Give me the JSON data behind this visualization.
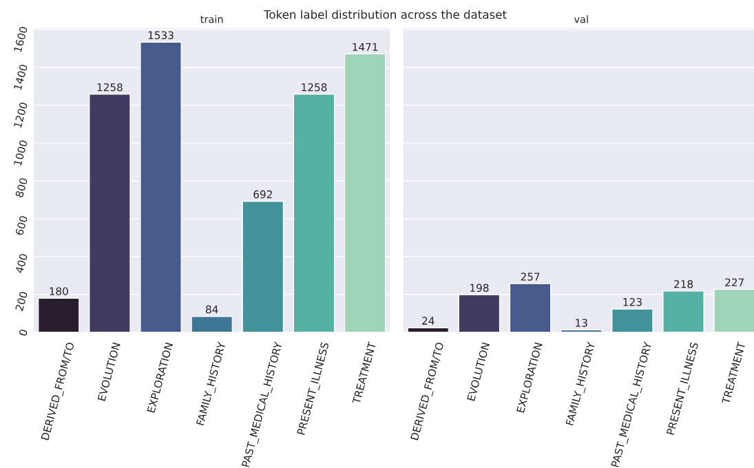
{
  "chart_data": [
    {
      "type": "bar",
      "title": "train",
      "annotations": [
        "Token label distribution across the dataset"
      ],
      "categories": [
        "DERIVED_FROM/TO",
        "EVOLUTION",
        "EXPLORATION",
        "FAMILY_HISTORY",
        "PAST_MEDICAL_HISTORY",
        "PRESENT_ILLNESS",
        "TREATMENT"
      ],
      "values": [
        180,
        1258,
        1533,
        84,
        692,
        1258,
        1471
      ],
      "colors": [
        "#2c1e31",
        "#413a61",
        "#465a8b",
        "#3f7896",
        "#42929b",
        "#55b2a3",
        "#a0d4b7"
      ],
      "ylim": [
        0,
        1610
      ],
      "yticks": [
        0,
        200,
        400,
        600,
        800,
        1000,
        1200,
        1400,
        1600
      ],
      "data_labels": true,
      "grid": "y"
    },
    {
      "type": "bar",
      "title": "val",
      "categories": [
        "DERIVED_FROM/TO",
        "EVOLUTION",
        "EXPLORATION",
        "FAMILY_HISTORY",
        "PAST_MEDICAL_HISTORY",
        "PRESENT_ILLNESS",
        "TREATMENT"
      ],
      "values": [
        24,
        198,
        257,
        13,
        123,
        218,
        227
      ],
      "colors": [
        "#2c1e31",
        "#413a61",
        "#465a8b",
        "#3f7896",
        "#42929b",
        "#55b2a3",
        "#a0d4b7"
      ],
      "ylim": [
        0,
        1610
      ],
      "yticks": [
        0,
        200,
        400,
        600,
        800,
        1000,
        1200,
        1400,
        1600
      ],
      "data_labels": true,
      "grid": "y",
      "tick_labels": "x"
    }
  ]
}
